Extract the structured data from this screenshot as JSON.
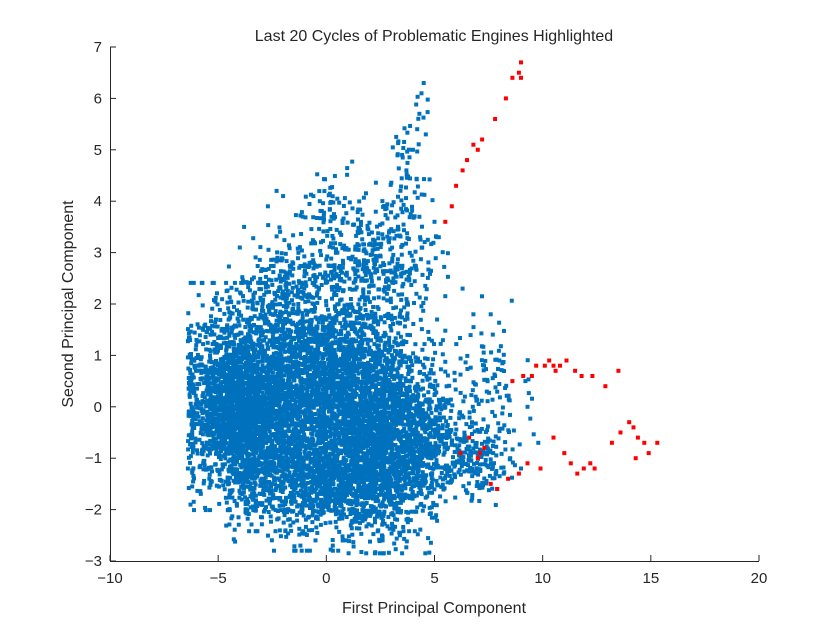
{
  "chart_data": {
    "type": "scatter",
    "title": "Last 20 Cycles of Problematic Engines Highlighted",
    "xlabel": "First Principal Component",
    "ylabel": "Second Principal Component",
    "xlim": [
      -10,
      20
    ],
    "ylim": [
      -3,
      7
    ],
    "xticks": [
      -10,
      -5,
      0,
      5,
      10,
      15,
      20
    ],
    "yticks": [
      -3,
      -2,
      -1,
      0,
      1,
      2,
      3,
      4,
      5,
      6,
      7
    ],
    "xtick_labels": [
      "−10",
      "−5",
      "0",
      "5",
      "10",
      "15",
      "20"
    ],
    "ytick_labels": [
      "−3",
      "−2",
      "−1",
      "0",
      "1",
      "2",
      "3",
      "4",
      "5",
      "6",
      "7"
    ],
    "grid": false,
    "legend": "none",
    "colors": {
      "normal": "#0072BD",
      "highlighted": "#FF0000"
    },
    "series": [
      {
        "role": "normal",
        "clusters": [
          {
            "cx": -4.2,
            "cy": 0.2,
            "sx": 1.2,
            "sy": 0.85,
            "n": 1500
          },
          {
            "cx": -3.6,
            "cy": -0.6,
            "sx": 1.0,
            "sy": 0.7,
            "n": 700
          },
          {
            "cx": -1.2,
            "cy": 0.4,
            "sx": 1.5,
            "sy": 0.9,
            "n": 1700
          },
          {
            "cx": 1.6,
            "cy": 0.3,
            "sx": 1.5,
            "sy": 0.9,
            "n": 1500
          },
          {
            "cx": 0.2,
            "cy": -1.5,
            "sx": 1.8,
            "sy": 0.5,
            "n": 1100
          },
          {
            "cx": 2.7,
            "cy": -0.9,
            "sx": 1.1,
            "sy": 0.75,
            "n": 900
          },
          {
            "cx": 4.3,
            "cy": -0.6,
            "sx": 0.8,
            "sy": 0.7,
            "n": 400
          },
          {
            "cx": 6.6,
            "cy": -1.0,
            "sx": 0.9,
            "sy": 0.35,
            "n": 220
          },
          {
            "cx": 7.3,
            "cy": 0.2,
            "sx": 0.9,
            "sy": 0.75,
            "n": 120
          },
          {
            "cx": 2.5,
            "cy": 2.8,
            "sx": 1.2,
            "sy": 0.6,
            "n": 300
          },
          {
            "cx": -1.5,
            "cy": 2.3,
            "sx": 1.4,
            "sy": 0.55,
            "n": 260
          },
          {
            "cx": 3.9,
            "cy": 4.6,
            "sx": 0.45,
            "sy": 0.75,
            "n": 60
          },
          {
            "cx": 0.5,
            "cy": 3.6,
            "sx": 0.9,
            "sy": 0.45,
            "n": 90
          }
        ],
        "outliers": [
          {
            "x": 4.5,
            "y": 6.3
          },
          {
            "x": 4.4,
            "y": 6.1
          },
          {
            "x": 4.3,
            "y": 5.7
          },
          {
            "x": 4.2,
            "y": 5.4
          },
          {
            "x": 4.6,
            "y": 5.3
          },
          {
            "x": 4.0,
            "y": 5.0
          },
          {
            "x": 3.5,
            "y": 4.9
          },
          {
            "x": 3.7,
            "y": 4.6
          },
          {
            "x": -2.3,
            "y": 4.2
          },
          {
            "x": -2.0,
            "y": 4.1
          },
          {
            "x": -0.6,
            "y": 4.1
          },
          {
            "x": -0.3,
            "y": 4.0
          },
          {
            "x": -2.7,
            "y": 3.9
          },
          {
            "x": 5.0,
            "y": 3.6
          },
          {
            "x": 5.2,
            "y": 3.3
          },
          {
            "x": -4.0,
            "y": 3.1
          },
          {
            "x": -3.8,
            "y": 3.5
          },
          {
            "x": -1.1,
            "y": 3.7
          },
          {
            "x": 8.0,
            "y": 0.9
          },
          {
            "x": 7.8,
            "y": 0.6
          },
          {
            "x": 9.3,
            "y": 0.0
          },
          {
            "x": 9.8,
            "y": -0.7
          },
          {
            "x": 8.5,
            "y": -1.0
          },
          {
            "x": 9.0,
            "y": -1.2
          },
          {
            "x": 8.2,
            "y": -1.3
          },
          {
            "x": 7.9,
            "y": -1.6
          },
          {
            "x": 9.2,
            "y": 0.5
          },
          {
            "x": -6.2,
            "y": -0.6
          },
          {
            "x": -6.4,
            "y": -1.2
          },
          {
            "x": -6.0,
            "y": 1.3
          },
          {
            "x": -6.1,
            "y": 0.8
          },
          {
            "x": -5.6,
            "y": 1.6
          },
          {
            "x": -1.2,
            "y": -2.7
          },
          {
            "x": -0.9,
            "y": -2.8
          },
          {
            "x": -0.5,
            "y": -2.6
          },
          {
            "x": 0.3,
            "y": -2.7
          },
          {
            "x": 0.9,
            "y": -2.6
          },
          {
            "x": 2.6,
            "y": -2.6
          },
          {
            "x": 3.4,
            "y": -2.5
          },
          {
            "x": 6.3,
            "y": 2.3
          },
          {
            "x": 6.8,
            "y": 1.8
          },
          {
            "x": 7.6,
            "y": 1.8
          }
        ]
      },
      {
        "role": "highlighted",
        "points": [
          {
            "x": 5.5,
            "y": 3.6
          },
          {
            "x": 5.8,
            "y": 3.9
          },
          {
            "x": 6.0,
            "y": 4.3
          },
          {
            "x": 6.3,
            "y": 4.6
          },
          {
            "x": 6.5,
            "y": 4.8
          },
          {
            "x": 6.8,
            "y": 5.1
          },
          {
            "x": 7.0,
            "y": 5.0
          },
          {
            "x": 7.2,
            "y": 5.2
          },
          {
            "x": 7.8,
            "y": 5.6
          },
          {
            "x": 8.3,
            "y": 6.0
          },
          {
            "x": 8.6,
            "y": 6.4
          },
          {
            "x": 8.9,
            "y": 6.5
          },
          {
            "x": 9.0,
            "y": 6.7
          },
          {
            "x": 9.0,
            "y": 6.4
          },
          {
            "x": 8.6,
            "y": 0.5
          },
          {
            "x": 9.1,
            "y": 0.6
          },
          {
            "x": 9.5,
            "y": 0.6
          },
          {
            "x": 9.7,
            "y": 0.8
          },
          {
            "x": 10.1,
            "y": 0.8
          },
          {
            "x": 10.3,
            "y": 0.9
          },
          {
            "x": 10.5,
            "y": 0.8
          },
          {
            "x": 10.6,
            "y": 0.7
          },
          {
            "x": 10.8,
            "y": 0.8
          },
          {
            "x": 11.1,
            "y": 0.9
          },
          {
            "x": 11.5,
            "y": 0.7
          },
          {
            "x": 11.8,
            "y": 0.6
          },
          {
            "x": 12.3,
            "y": 0.6
          },
          {
            "x": 12.9,
            "y": 0.4
          },
          {
            "x": 13.5,
            "y": 0.7
          },
          {
            "x": 7.3,
            "y": -0.8
          },
          {
            "x": 7.0,
            "y": -1.0
          },
          {
            "x": 7.6,
            "y": -1.5
          },
          {
            "x": 7.9,
            "y": -1.6
          },
          {
            "x": 8.4,
            "y": -1.4
          },
          {
            "x": 8.9,
            "y": -1.3
          },
          {
            "x": 9.3,
            "y": -1.1
          },
          {
            "x": 9.9,
            "y": -1.2
          },
          {
            "x": 10.5,
            "y": -0.6
          },
          {
            "x": 11.0,
            "y": -0.9
          },
          {
            "x": 11.3,
            "y": -1.1
          },
          {
            "x": 11.6,
            "y": -1.3
          },
          {
            "x": 11.9,
            "y": -1.2
          },
          {
            "x": 12.4,
            "y": -1.2
          },
          {
            "x": 12.2,
            "y": -1.1
          },
          {
            "x": 13.2,
            "y": -0.7
          },
          {
            "x": 13.6,
            "y": -0.5
          },
          {
            "x": 14.0,
            "y": -0.3
          },
          {
            "x": 14.2,
            "y": -0.4
          },
          {
            "x": 14.4,
            "y": -0.6
          },
          {
            "x": 14.7,
            "y": -0.7
          },
          {
            "x": 14.9,
            "y": -0.9
          },
          {
            "x": 15.3,
            "y": -0.7
          },
          {
            "x": 14.3,
            "y": -1.0
          },
          {
            "x": 6.2,
            "y": -0.9
          },
          {
            "x": 6.6,
            "y": -0.6
          },
          {
            "x": 7.1,
            "y": -0.9
          }
        ]
      }
    ]
  }
}
